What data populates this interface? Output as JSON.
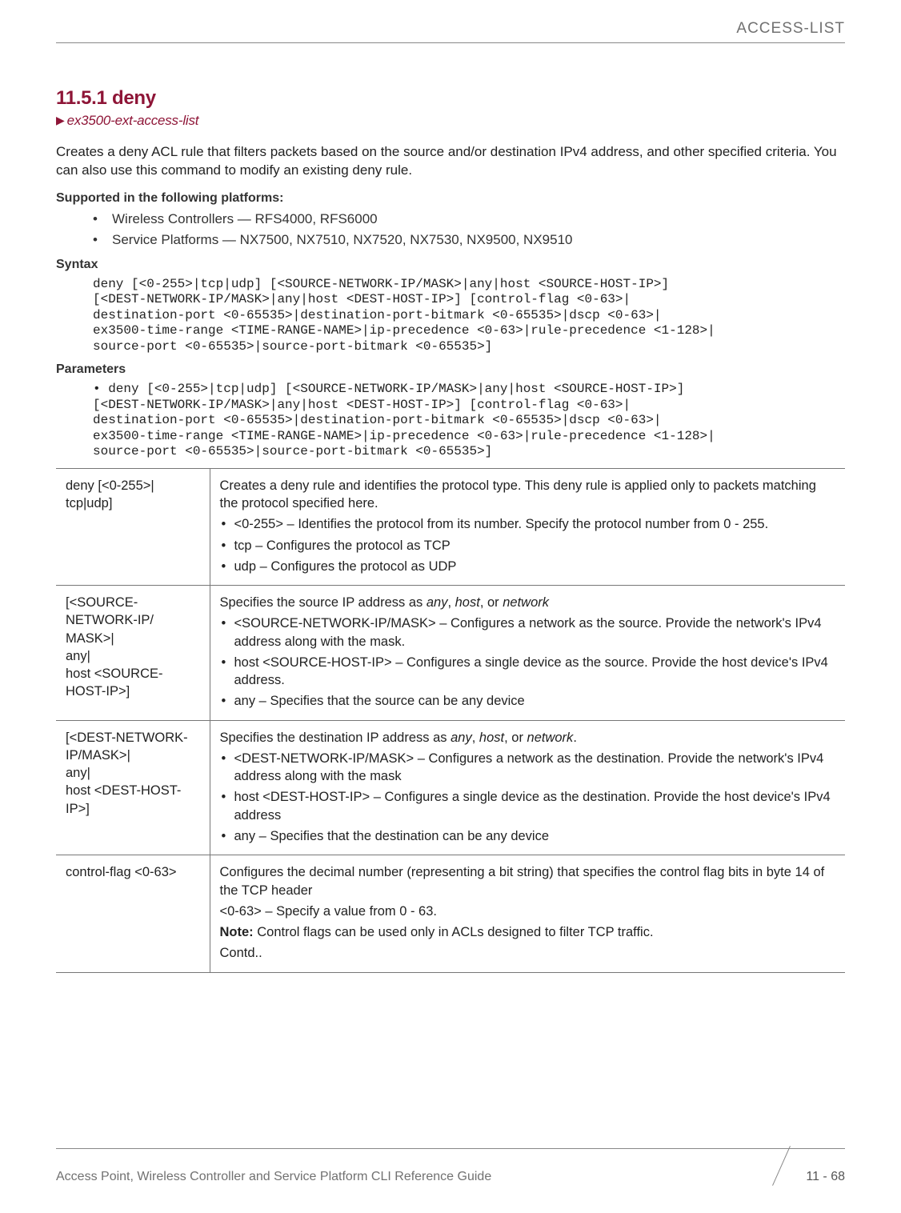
{
  "header": {
    "title": "ACCESS-LIST"
  },
  "section": {
    "number_title": "11.5.1 deny",
    "arrow": "▶",
    "subtitle": "ex3500-ext-access-list",
    "intro": "Creates a deny ACL rule that filters packets based on the source and/or destination IPv4 address, and other specified criteria. You can also use this command to modify an existing deny rule."
  },
  "supported": {
    "label": "Supported in the following platforms:",
    "items": [
      "Wireless Controllers — RFS4000, RFS6000",
      "Service Platforms — NX7500, NX7510, NX7520, NX7530, NX9500, NX9510"
    ]
  },
  "syntax": {
    "label": "Syntax",
    "code": "deny [<0-255>|tcp|udp] [<SOURCE-NETWORK-IP/MASK>|any|host <SOURCE-HOST-IP>] \n[<DEST-NETWORK-IP/MASK>|any|host <DEST-HOST-IP>] [control-flag <0-63>|\ndestination-port <0-65535>|destination-port-bitmark <0-65535>|dscp <0-63>|\nex3500-time-range <TIME-RANGE-NAME>|ip-precedence <0-63>|rule-precedence <1-128>|\nsource-port <0-65535>|source-port-bitmark <0-65535>]"
  },
  "parameters": {
    "label": "Parameters",
    "code": "• deny [<0-255>|tcp|udp] [<SOURCE-NETWORK-IP/MASK>|any|host <SOURCE-HOST-IP>] \n[<DEST-NETWORK-IP/MASK>|any|host <DEST-HOST-IP>] [control-flag <0-63>|\ndestination-port <0-65535>|destination-port-bitmark <0-65535>|dscp <0-63>|\nex3500-time-range <TIME-RANGE-NAME>|ip-precedence <0-63>|rule-precedence <1-128>|\nsource-port <0-65535>|source-port-bitmark <0-65535>]"
  },
  "table": {
    "rows": [
      {
        "left_lines": [
          "deny [<0-255>|",
          "tcp|udp]"
        ],
        "desc_intro": "Creates a deny rule and identifies the protocol type. This deny rule is applied only to packets matching the protocol specified here.",
        "bullets": [
          "<0-255> – Identifies the protocol from its number. Specify the protocol number from 0 - 255.",
          "tcp – Configures the protocol as TCP",
          "udp – Configures the protocol as UDP"
        ]
      },
      {
        "left_lines": [
          "[<SOURCE-",
          "NETWORK-IP/",
          "MASK>|",
          "any|",
          "host <SOURCE-",
          "HOST-IP>]"
        ],
        "desc_intro_html": "Specifies the source IP address as <em>any</em>, <em>host</em>, or <em>network</em>",
        "bullets": [
          "<SOURCE-NETWORK-IP/MASK> – Configures a network as the source. Provide the network's IPv4 address along with the mask.",
          "host <SOURCE-HOST-IP> – Configures a single device as the source. Provide the host device's IPv4 address.",
          "any – Specifies that the source can be any device"
        ]
      },
      {
        "left_lines": [
          "[<DEST-NETWORK-",
          "IP/MASK>|",
          "any|",
          "host <DEST-HOST-",
          "IP>]"
        ],
        "desc_intro_html": "Specifies the destination IP address as <em>any</em>, <em>host</em>, or <em>network</em>.",
        "bullets": [
          "<DEST-NETWORK-IP/MASK> – Configures a network as the destination. Provide the network's IPv4 address along with the mask",
          "host <DEST-HOST-IP> – Configures a single device as the destination. Provide the host device's IPv4 address",
          "any – Specifies that the destination can be any device"
        ]
      },
      {
        "left_lines": [
          "control-flag <0-63>"
        ],
        "desc_lines": [
          "Configures the decimal number (representing a bit string) that specifies the control flag bits in byte 14 of the TCP header",
          "<0-63> – Specify a value from 0 - 63."
        ],
        "note_label": "Note:",
        "note_text": " Control flags can be used only in ACLs designed to filter TCP traffic.",
        "contd": "Contd.."
      }
    ]
  },
  "footer": {
    "left": "Access Point, Wireless Controller and Service Platform CLI Reference Guide",
    "page": "11 - 68"
  }
}
